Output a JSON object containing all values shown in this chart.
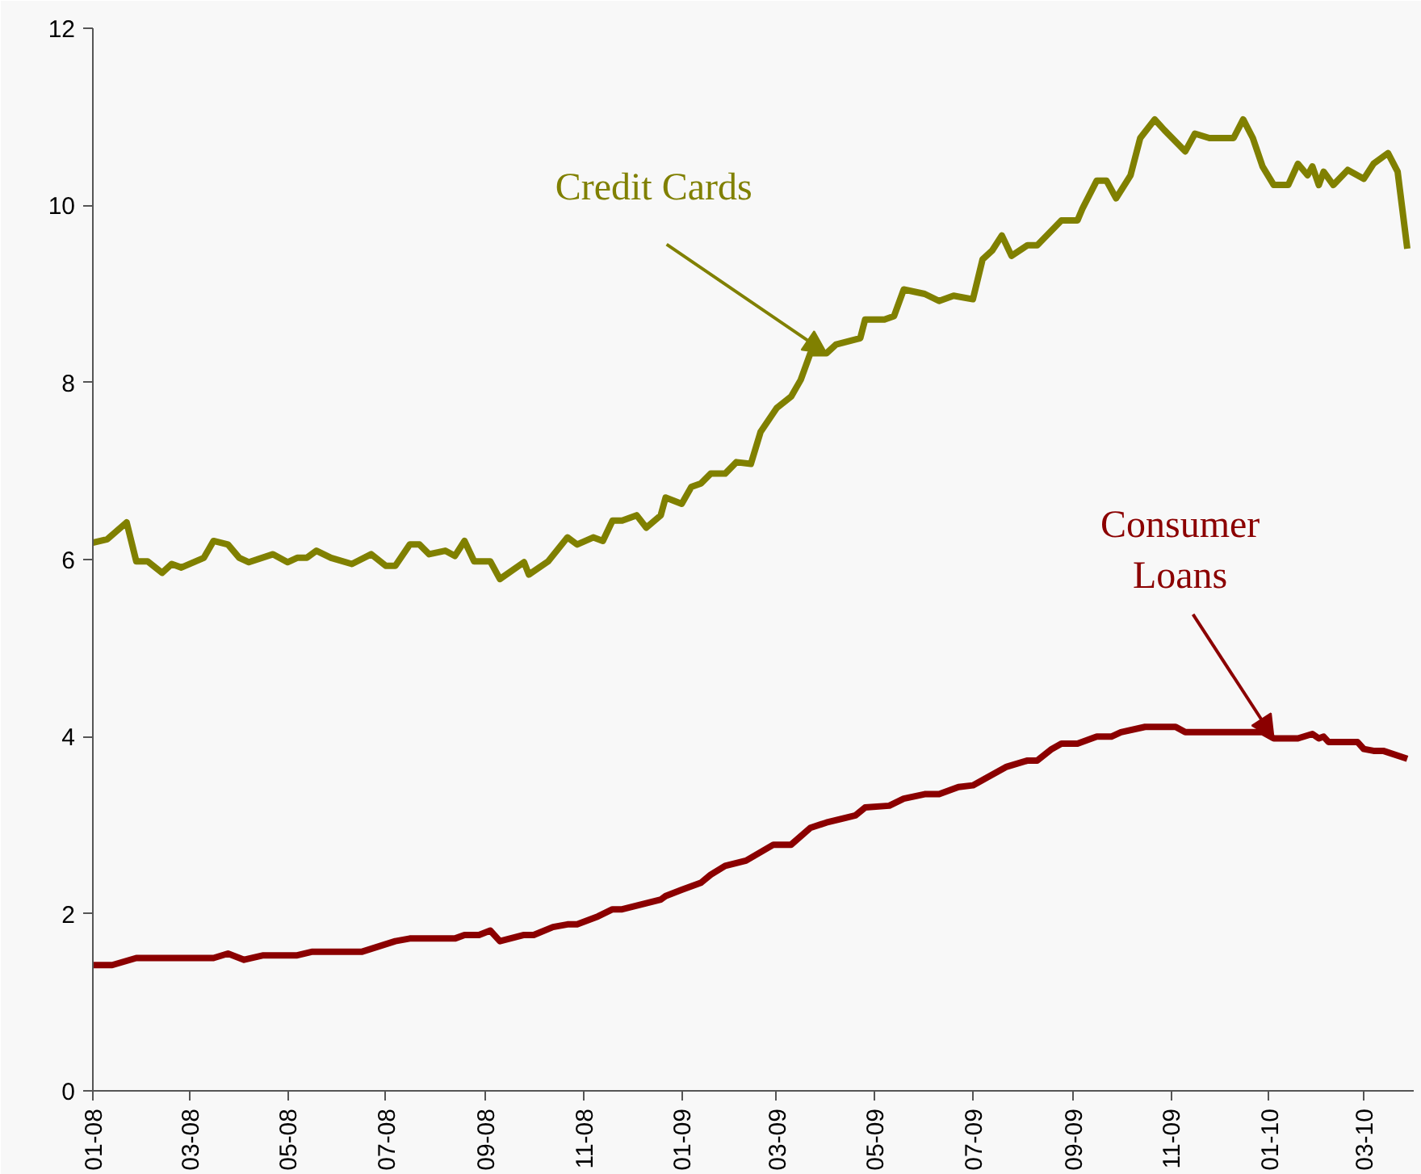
{
  "chart_data": {
    "type": "line",
    "line_style": "solid",
    "marker": "none",
    "grid": false,
    "xlim": [
      "2008-01-01",
      "2010-04-01"
    ],
    "ylim": [
      0,
      12
    ],
    "yticks": [
      0,
      2,
      4,
      6,
      8,
      10,
      12
    ],
    "xticks": [
      {
        "value": "2008-01",
        "label": "01-08"
      },
      {
        "value": "2008-03",
        "label": "03-08"
      },
      {
        "value": "2008-05",
        "label": "05-08"
      },
      {
        "value": "2008-07",
        "label": "07-08"
      },
      {
        "value": "2008-09",
        "label": "09-08"
      },
      {
        "value": "2008-11",
        "label": "11-08"
      },
      {
        "value": "2009-01",
        "label": "01-09"
      },
      {
        "value": "2009-03",
        "label": "03-09"
      },
      {
        "value": "2009-05",
        "label": "05-09"
      },
      {
        "value": "2009-07",
        "label": "07-09"
      },
      {
        "value": "2009-09",
        "label": "09-09"
      },
      {
        "value": "2009-11",
        "label": "11-09"
      },
      {
        "value": "2010-01",
        "label": "01-10"
      },
      {
        "value": "2010-03",
        "label": "03-10"
      }
    ],
    "series": [
      {
        "color": "#808000",
        "x": [
          "2008-01-01",
          "2008-01-10",
          "2008-01-22",
          "2008-01-28",
          "2008-02-04",
          "2008-02-13",
          "2008-02-19",
          "2008-02-25",
          "2008-03-10",
          "2008-03-16",
          "2008-03-25",
          "2008-04-01",
          "2008-04-07",
          "2008-04-22",
          "2008-05-01",
          "2008-05-07",
          "2008-05-13",
          "2008-05-19",
          "2008-05-28",
          "2008-06-10",
          "2008-06-22",
          "2008-07-01",
          "2008-07-07",
          "2008-07-16",
          "2008-07-22",
          "2008-07-28",
          "2008-08-07",
          "2008-08-13",
          "2008-08-19",
          "2008-08-25",
          "2008-09-04",
          "2008-09-10",
          "2008-09-25",
          "2008-09-28",
          "2008-10-10",
          "2008-10-22",
          "2008-10-28",
          "2008-11-07",
          "2008-11-13",
          "2008-11-19",
          "2008-11-25",
          "2008-12-04",
          "2008-12-10",
          "2008-12-19",
          "2008-12-22",
          "2009-01-01",
          "2009-01-07",
          "2009-01-13",
          "2009-01-19",
          "2009-01-28",
          "2009-02-04",
          "2009-02-13",
          "2009-02-19",
          "2009-03-01",
          "2009-03-10",
          "2009-03-16",
          "2009-03-22",
          "2009-04-01",
          "2009-04-07",
          "2009-04-22",
          "2009-04-25",
          "2009-05-07",
          "2009-05-13",
          "2009-05-19",
          "2009-06-01",
          "2009-06-10",
          "2009-06-19",
          "2009-07-01",
          "2009-07-07",
          "2009-07-13",
          "2009-07-19",
          "2009-07-25",
          "2009-08-04",
          "2009-08-10",
          "2009-08-25",
          "2009-09-04",
          "2009-09-07",
          "2009-09-16",
          "2009-09-22",
          "2009-09-28",
          "2009-10-07",
          "2009-10-13",
          "2009-10-22",
          "2009-10-28",
          "2009-11-10",
          "2009-11-16",
          "2009-11-25",
          "2009-12-10",
          "2009-12-16",
          "2009-12-22",
          "2009-12-28",
          "2010-01-04",
          "2010-01-13",
          "2010-01-19",
          "2010-01-25",
          "2010-01-28",
          "2010-02-01",
          "2010-02-04",
          "2010-02-10",
          "2010-02-19",
          "2010-03-01",
          "2010-03-07",
          "2010-03-16",
          "2010-03-22",
          "2010-03-28"
        ],
        "values": [
          6.19,
          6.23,
          6.42,
          5.98,
          5.98,
          5.85,
          5.95,
          5.91,
          6.02,
          6.21,
          6.17,
          6.02,
          5.97,
          6.06,
          5.97,
          6.02,
          6.02,
          6.1,
          6.02,
          5.95,
          6.06,
          5.93,
          5.93,
          6.17,
          6.17,
          6.06,
          6.1,
          6.04,
          6.21,
          5.98,
          5.98,
          5.78,
          5.97,
          5.83,
          5.98,
          6.25,
          6.17,
          6.25,
          6.21,
          6.44,
          6.44,
          6.5,
          6.36,
          6.5,
          6.7,
          6.63,
          6.82,
          6.86,
          6.97,
          6.97,
          7.1,
          7.08,
          7.44,
          7.71,
          7.84,
          8.03,
          8.33,
          8.33,
          8.43,
          8.5,
          8.71,
          8.71,
          8.75,
          9.05,
          9.0,
          8.92,
          8.98,
          8.94,
          9.39,
          9.49,
          9.66,
          9.43,
          9.55,
          9.55,
          9.83,
          9.83,
          9.96,
          10.28,
          10.28,
          10.08,
          10.34,
          10.76,
          10.97,
          10.85,
          10.61,
          10.81,
          10.76,
          10.76,
          10.97,
          10.76,
          10.44,
          10.23,
          10.23,
          10.47,
          10.34,
          10.44,
          10.23,
          10.38,
          10.23,
          10.4,
          10.3,
          10.47,
          10.59,
          10.38,
          9.51
        ]
      },
      {
        "color": "#8b0000",
        "x": [
          "2008-01-01",
          "2008-01-13",
          "2008-01-28",
          "2008-03-16",
          "2008-03-25",
          "2008-04-04",
          "2008-04-16",
          "2008-05-07",
          "2008-05-16",
          "2008-06-16",
          "2008-07-07",
          "2008-07-16",
          "2008-08-13",
          "2008-08-19",
          "2008-08-28",
          "2008-09-04",
          "2008-09-10",
          "2008-09-25",
          "2008-10-01",
          "2008-10-13",
          "2008-10-22",
          "2008-10-28",
          "2008-11-10",
          "2008-11-19",
          "2008-11-25",
          "2008-12-19",
          "2008-12-22",
          "2009-01-01",
          "2009-01-13",
          "2009-01-19",
          "2009-01-28",
          "2009-02-10",
          "2009-02-27",
          "2009-03-10",
          "2009-03-22",
          "2009-04-01",
          "2009-04-19",
          "2009-04-25",
          "2009-05-10",
          "2009-05-19",
          "2009-06-01",
          "2009-06-10",
          "2009-06-22",
          "2009-07-01",
          "2009-07-10",
          "2009-07-22",
          "2009-08-04",
          "2009-08-10",
          "2009-08-19",
          "2009-08-25",
          "2009-09-04",
          "2009-09-16",
          "2009-09-25",
          "2009-10-01",
          "2009-10-16",
          "2009-11-04",
          "2009-11-10",
          "2009-12-28",
          "2010-01-04",
          "2010-01-19",
          "2010-01-28",
          "2010-02-01",
          "2010-02-04",
          "2010-02-07",
          "2010-02-25",
          "2010-03-01",
          "2010-03-07",
          "2010-03-13",
          "2010-03-28"
        ],
        "values": [
          1.42,
          1.42,
          1.5,
          1.5,
          1.55,
          1.48,
          1.53,
          1.53,
          1.57,
          1.57,
          1.69,
          1.72,
          1.72,
          1.76,
          1.76,
          1.81,
          1.69,
          1.76,
          1.76,
          1.85,
          1.88,
          1.88,
          1.97,
          2.05,
          2.05,
          2.16,
          2.2,
          2.27,
          2.35,
          2.44,
          2.54,
          2.6,
          2.78,
          2.78,
          2.97,
          3.03,
          3.11,
          3.2,
          3.22,
          3.3,
          3.35,
          3.35,
          3.43,
          3.45,
          3.54,
          3.66,
          3.73,
          3.73,
          3.86,
          3.92,
          3.92,
          4.0,
          4.0,
          4.05,
          4.11,
          4.11,
          4.05,
          4.05,
          3.98,
          3.98,
          4.03,
          3.98,
          4.0,
          3.94,
          3.94,
          3.86,
          3.84,
          3.84,
          3.75
        ]
      }
    ],
    "annotations": [
      {
        "text": "Credit Cards",
        "x": "2009-04-01",
        "y": 8.33
      },
      {
        "text": "Consumer\nLoans",
        "x": "2010-01-04",
        "y": 3.98
      }
    ]
  }
}
